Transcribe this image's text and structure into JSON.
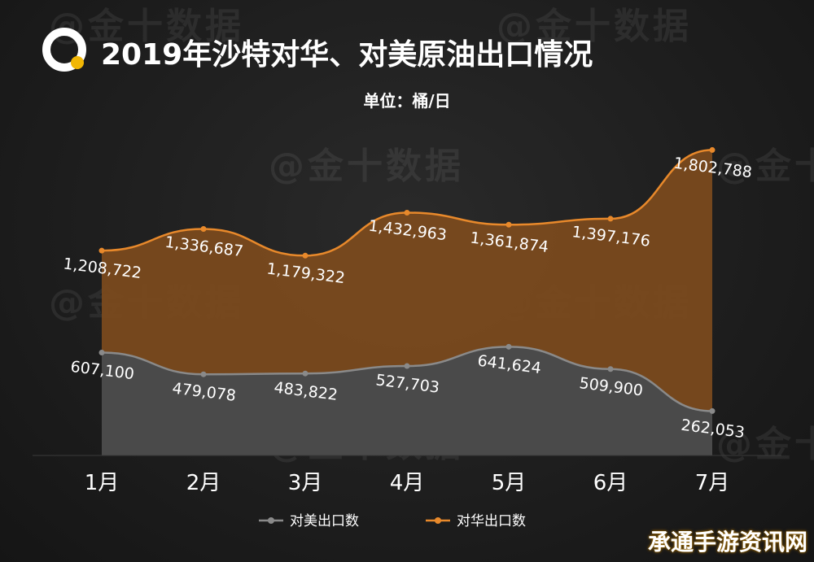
{
  "title": "2019年沙特对华、对美原油出口情况",
  "subtitle": "单位：桶/日",
  "watermark_text": "@金十数据",
  "corner_badge": "承通手游资讯网",
  "colors": {
    "background": "#1e1e1e",
    "china_line": "#e8892b",
    "china_fill": "#7a4a1e",
    "us_line": "#8a8a8a",
    "us_fill": "#4a4a4a",
    "logo_ring": "#ffffff",
    "logo_dot": "#f2b705"
  },
  "chart_data": {
    "type": "area",
    "title": "2019年沙特对华、对美原油出口情况",
    "subtitle": "单位：桶/日",
    "categories": [
      "1月",
      "2月",
      "3月",
      "4月",
      "5月",
      "6月",
      "7月"
    ],
    "series": [
      {
        "name": "对华出口数",
        "key": "china",
        "values": [
          1208722,
          1336687,
          1179322,
          1432963,
          1361874,
          1397176,
          1802788
        ],
        "labels": [
          "1,208,722",
          "1,336,687",
          "1,179,322",
          "1,432,963",
          "1,361,874",
          "1,397,176",
          "1,802,788"
        ]
      },
      {
        "name": "对美出口数",
        "key": "us",
        "values": [
          607100,
          479078,
          483822,
          527703,
          641624,
          509900,
          262053
        ],
        "labels": [
          "607,100",
          "479,078",
          "483,822",
          "527,703",
          "641,624",
          "509,900",
          "262,053"
        ]
      }
    ],
    "ylim": [
      0,
      1800000
    ],
    "grid": false,
    "legend": {
      "position": "bottom-center",
      "items": [
        "对美出口数",
        "对华出口数"
      ]
    }
  }
}
